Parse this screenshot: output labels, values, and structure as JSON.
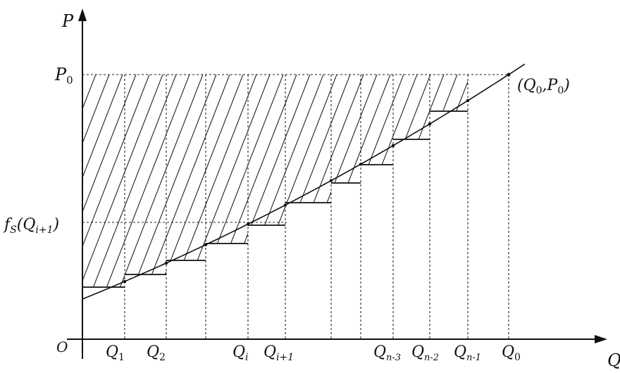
{
  "diagram": {
    "axes": {
      "y_label": "P",
      "x_label": "Q",
      "origin_label": "O"
    },
    "y_axis_labels": {
      "p0": "P",
      "p0_sub": "0",
      "fs_prefix": "f",
      "fs_sub": "S",
      "fs_arg": "(Q",
      "fs_arg_sub": "i+1",
      "fs_close": ")"
    },
    "point_label": {
      "text_open": "(Q",
      "q_sub": "0",
      "mid": ",P",
      "p_sub": "0",
      "text_close": ")"
    },
    "x_ticks": [
      {
        "base": "Q",
        "sub": "1"
      },
      {
        "base": "Q",
        "sub": "2"
      },
      {
        "base": "Q",
        "sub": "i"
      },
      {
        "base": "Q",
        "sub": "i+1"
      },
      {
        "base": "Q",
        "sub": "n-3"
      },
      {
        "base": "Q",
        "sub": "n-2"
      },
      {
        "base": "Q",
        "sub": "n-1"
      },
      {
        "base": "Q",
        "sub": "0"
      }
    ]
  }
}
